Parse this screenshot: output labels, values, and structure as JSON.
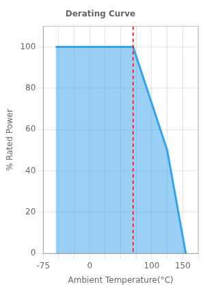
{
  "chart_data": {
    "type": "area",
    "title": "Derating Curve",
    "x_label": "Ambient Temperature(°C)",
    "y_label": "% Rated Power",
    "x": [
      -55,
      70,
      125,
      155
    ],
    "values": [
      100,
      100,
      50,
      0
    ],
    "xlim": [
      -75,
      175
    ],
    "xticks": [
      -75,
      {
        "value": -50,
        "label": ""
      },
      {
        "value": -25,
        "label": ""
      },
      0,
      {
        "value": 25,
        "label": ""
      },
      {
        "value": 50,
        "label": ""
      },
      {
        "value": 75,
        "label": ""
      },
      100,
      {
        "value": 125,
        "label": ""
      },
      150,
      {
        "value": 175,
        "label": ""
      }
    ],
    "ylim": [
      0,
      110
    ],
    "yticks": [
      0,
      20,
      40,
      60,
      80,
      100
    ],
    "vlines": [
      {
        "x": 70,
        "color": "red",
        "line_style": "dashed"
      }
    ],
    "grid": true
  }
}
